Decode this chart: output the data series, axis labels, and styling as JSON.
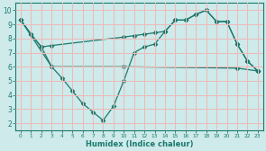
{
  "line1_x": [
    0,
    1,
    2,
    3,
    10,
    11,
    12,
    13,
    14,
    15,
    16,
    17,
    18,
    19,
    20,
    21,
    22,
    23
  ],
  "line1_y": [
    9.3,
    8.3,
    7.4,
    7.5,
    8.1,
    8.2,
    8.3,
    8.4,
    8.5,
    9.3,
    9.3,
    9.7,
    10.0,
    9.2,
    9.2,
    7.6,
    6.4,
    5.7
  ],
  "line2_x": [
    0,
    1,
    2,
    3,
    4,
    5,
    6,
    7,
    8,
    9,
    10,
    11,
    12,
    13,
    14,
    15,
    16,
    17,
    18,
    19,
    20,
    21,
    22,
    23
  ],
  "line2_y": [
    9.3,
    8.3,
    7.4,
    6.0,
    5.2,
    4.3,
    3.4,
    2.8,
    2.2,
    3.2,
    5.0,
    7.0,
    7.4,
    7.6,
    8.5,
    9.3,
    9.3,
    9.7,
    10.0,
    9.2,
    9.2,
    7.6,
    6.4,
    5.7
  ],
  "line3_x": [
    0,
    3,
    10,
    21,
    23
  ],
  "line3_y": [
    9.3,
    6.0,
    6.0,
    5.9,
    5.7
  ],
  "xlim": [
    -0.5,
    23.5
  ],
  "ylim": [
    1.5,
    10.5
  ],
  "yticks": [
    2,
    3,
    4,
    5,
    6,
    7,
    8,
    9,
    10
  ],
  "xticks": [
    0,
    1,
    2,
    3,
    4,
    5,
    6,
    7,
    8,
    9,
    10,
    11,
    12,
    13,
    14,
    15,
    16,
    17,
    18,
    19,
    20,
    21,
    22,
    23
  ],
  "xlabel": "Humidex (Indice chaleur)",
  "line_color": "#1a7a6e",
  "bg_color": "#ceeaea",
  "grid_color": "#f0b8b8",
  "marker": "D",
  "markersize": 2.5,
  "linewidth": 0.9
}
